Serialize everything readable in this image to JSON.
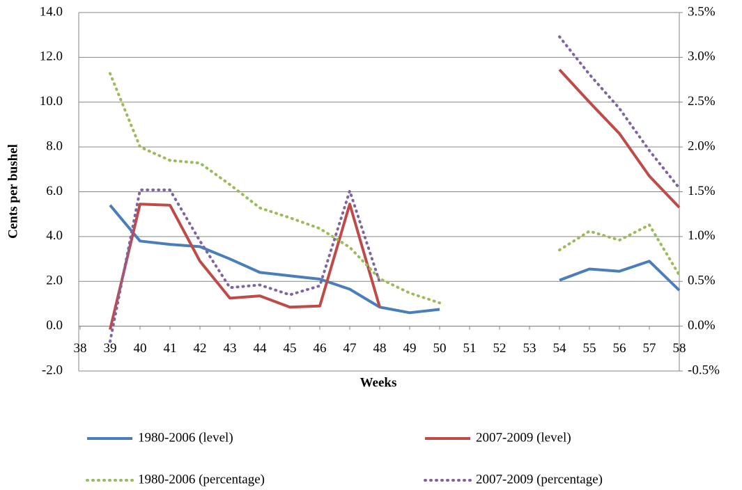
{
  "chart_data": {
    "type": "line",
    "x_label": "Weeks",
    "y_label": "Cents per bushel",
    "x": [
      39,
      40,
      41,
      42,
      43,
      44,
      45,
      46,
      47,
      48,
      49,
      50,
      51,
      52,
      53,
      54,
      55,
      56,
      57,
      58
    ],
    "xlim": [
      38,
      58
    ],
    "xticks": [
      38,
      39,
      40,
      41,
      42,
      43,
      44,
      45,
      46,
      47,
      48,
      49,
      50,
      51,
      52,
      53,
      54,
      55,
      56,
      57,
      58
    ],
    "ylim": [
      -2,
      14
    ],
    "yticks": [
      {
        "value": -2,
        "label": "-2.0"
      },
      {
        "value": 0,
        "label": "0.0"
      },
      {
        "value": 2,
        "label": "2.0"
      },
      {
        "value": 4,
        "label": "4.0"
      },
      {
        "value": 6,
        "label": "6.0"
      },
      {
        "value": 8,
        "label": "8.0"
      },
      {
        "value": 10,
        "label": "10.0"
      },
      {
        "value": 12,
        "label": "12.0"
      },
      {
        "value": 14,
        "label": "14.0"
      }
    ],
    "y2lim": [
      -0.5,
      3.5
    ],
    "y2ticks": [
      {
        "value": -0.5,
        "label": "-0.5%"
      },
      {
        "value": 0,
        "label": "0.0%"
      },
      {
        "value": 0.5,
        "label": "0.5%"
      },
      {
        "value": 1,
        "label": "1.0%"
      },
      {
        "value": 1.5,
        "label": "1.5%"
      },
      {
        "value": 2,
        "label": "2.0%"
      },
      {
        "value": 2.5,
        "label": "2.5%"
      },
      {
        "value": 3,
        "label": "3.0%"
      },
      {
        "value": 3.5,
        "label": "3.5%"
      }
    ],
    "grid": true,
    "legend": "bottom",
    "series": [
      {
        "name": "1980-2006 (level)",
        "color": "#4a7ebb",
        "style": "solid",
        "values": [
          5.4,
          3.8,
          3.65,
          3.55,
          3.0,
          2.4,
          2.25,
          2.1,
          1.65,
          0.85,
          0.6,
          0.75,
          null,
          null,
          null,
          2.05,
          2.55,
          2.45,
          2.9,
          1.6
        ]
      },
      {
        "name": "2007-2009 (level)",
        "color": "#be4b48",
        "style": "solid",
        "values": [
          -0.15,
          5.45,
          5.4,
          2.9,
          1.25,
          1.35,
          0.85,
          0.9,
          5.45,
          0.85,
          null,
          null,
          null,
          null,
          null,
          11.45,
          10.0,
          8.6,
          6.7,
          5.3
        ]
      },
      {
        "name": "1980-2006 (percentage)",
        "color": "#9bbb59",
        "style": "dotted",
        "axis": "y2",
        "values": [
          2.82,
          2.0,
          1.85,
          1.82,
          1.58,
          1.32,
          1.21,
          1.09,
          0.88,
          0.53,
          0.37,
          0.26,
          null,
          null,
          null,
          0.85,
          1.06,
          0.96,
          1.13,
          0.57
        ]
      },
      {
        "name": "2007-2009 (percentage)",
        "color": "#8064a2",
        "style": "dotted",
        "axis": "y2",
        "values": [
          -0.17,
          1.52,
          1.52,
          0.95,
          0.43,
          0.46,
          0.35,
          0.45,
          1.51,
          0.49,
          null,
          null,
          null,
          null,
          null,
          3.23,
          2.81,
          2.43,
          1.96,
          1.54
        ]
      }
    ]
  }
}
